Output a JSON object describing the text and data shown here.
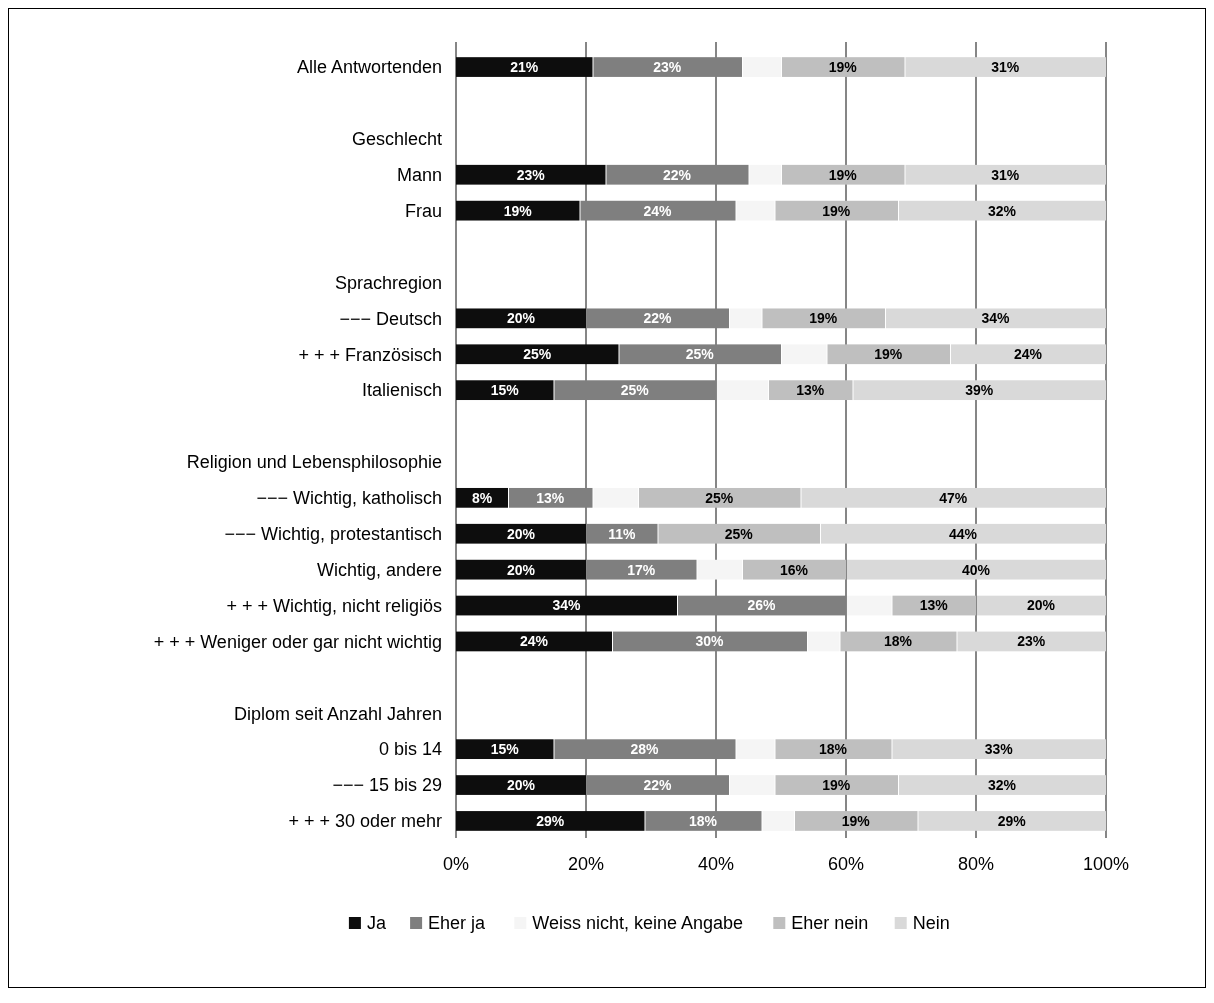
{
  "chart_data": {
    "type": "bar",
    "orientation": "horizontal",
    "stacked": true,
    "categories": [
      "Alle Antwortenden",
      null,
      "Geschlecht",
      "Mann",
      "Frau",
      null,
      "Sprachregion",
      "−−−  Deutsch",
      "+ + +  Französisch",
      "Italienisch",
      null,
      "Religion und Lebensphilosophie",
      "−−−  Wichtig, katholisch",
      "−−−  Wichtig, protestantisch",
      "Wichtig, andere",
      "+ + +  Wichtig, nicht religiös",
      "+ + +  Weniger oder gar nicht wichtig",
      null,
      "Diplom seit Anzahl Jahren",
      "0 bis 14",
      "−−−  15 bis 29",
      "+ + +  30 oder mehr"
    ],
    "series": [
      {
        "name": "Ja",
        "color": "#0d0d0d",
        "values": [
          21,
          null,
          null,
          23,
          19,
          null,
          null,
          20,
          25,
          15,
          null,
          null,
          8,
          20,
          20,
          34,
          24,
          null,
          null,
          15,
          20,
          29
        ],
        "value_labels": [
          "21%",
          null,
          null,
          "23%",
          "19%",
          null,
          null,
          "20%",
          "25%",
          "15%",
          null,
          null,
          "8%",
          "20%",
          "20%",
          "34%",
          "24%",
          null,
          null,
          "15%",
          "20%",
          "29%"
        ]
      },
      {
        "name": "Eher ja",
        "color": "#7f7f7f",
        "values": [
          23,
          null,
          null,
          22,
          24,
          null,
          null,
          22,
          25,
          25,
          null,
          null,
          13,
          11,
          17,
          26,
          30,
          null,
          null,
          28,
          22,
          18
        ],
        "value_labels": [
          "23%",
          null,
          null,
          "22%",
          "24%",
          null,
          null,
          "22%",
          "25%",
          "25%",
          null,
          null,
          "13%",
          "11%",
          "17%",
          "26%",
          "30%",
          null,
          null,
          "28%",
          "22%",
          "18%"
        ]
      },
      {
        "name": "Weiss nicht, keine Angabe",
        "color": "#f5f5f5",
        "values": [
          6,
          null,
          null,
          5,
          6,
          null,
          null,
          5,
          7,
          8,
          null,
          null,
          7,
          0,
          7,
          7,
          5,
          null,
          null,
          6,
          7,
          5
        ]
      },
      {
        "name": "Eher nein",
        "color": "#bfbfbf",
        "values": [
          19,
          null,
          null,
          19,
          19,
          null,
          null,
          19,
          19,
          13,
          null,
          null,
          25,
          25,
          16,
          13,
          18,
          null,
          null,
          18,
          19,
          19
        ],
        "value_labels": [
          "19%",
          null,
          null,
          "19%",
          "19%",
          null,
          null,
          "19%",
          "19%",
          "13%",
          null,
          null,
          "25%",
          "25%",
          "16%",
          "13%",
          "18%",
          null,
          null,
          "18%",
          "19%",
          "19%"
        ]
      },
      {
        "name": "Nein",
        "color": "#d9d9d9",
        "values": [
          31,
          null,
          null,
          31,
          32,
          null,
          null,
          34,
          24,
          39,
          null,
          null,
          47,
          44,
          40,
          20,
          23,
          null,
          null,
          33,
          32,
          29
        ],
        "value_labels": [
          "31%",
          null,
          null,
          "31%",
          "32%",
          null,
          null,
          "34%",
          "24%",
          "39%",
          null,
          null,
          "47%",
          "44%",
          "40%",
          "20%",
          "23%",
          null,
          null,
          "33%",
          "32%",
          "29%"
        ]
      }
    ],
    "xlim": [
      0,
      100
    ],
    "xticks": [
      {
        "value": 0,
        "label": "0%"
      },
      {
        "value": 20,
        "label": "20%"
      },
      {
        "value": 40,
        "label": "40%"
      },
      {
        "value": 60,
        "label": "60%"
      },
      {
        "value": 80,
        "label": "80%"
      },
      {
        "value": 100,
        "label": "100%"
      }
    ],
    "grid": "x",
    "legend": "bottom"
  }
}
